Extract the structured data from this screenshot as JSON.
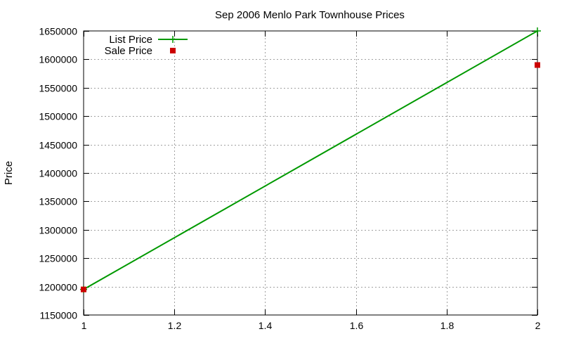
{
  "chart_data": {
    "type": "line",
    "title": "Sep 2006 Menlo Park Townhouse Prices",
    "xlabel": "",
    "ylabel": "Price",
    "xlim": [
      1,
      2
    ],
    "ylim": [
      1150000,
      1650000
    ],
    "xticks": [
      1,
      1.2,
      1.4,
      1.6,
      1.8,
      2
    ],
    "xtick_labels": [
      "1",
      "1.2",
      "1.4",
      "1.6",
      "1.8",
      "2"
    ],
    "yticks": [
      1150000,
      1200000,
      1250000,
      1300000,
      1350000,
      1400000,
      1450000,
      1500000,
      1550000,
      1600000,
      1650000
    ],
    "ytick_labels": [
      "1150000",
      "1200000",
      "1250000",
      "1300000",
      "1350000",
      "1400000",
      "1450000",
      "1500000",
      "1550000",
      "1600000",
      "1650000"
    ],
    "grid": true,
    "legend_position": "top-left",
    "series": [
      {
        "name": "List Price",
        "style": "linespoints",
        "marker": "plus",
        "color": "#009900",
        "x": [
          1,
          2
        ],
        "y": [
          1195000,
          1650000
        ]
      },
      {
        "name": "Sale Price",
        "style": "points",
        "marker": "square",
        "color": "#cc0000",
        "x": [
          1,
          2
        ],
        "y": [
          1195000,
          1590000
        ]
      }
    ]
  }
}
